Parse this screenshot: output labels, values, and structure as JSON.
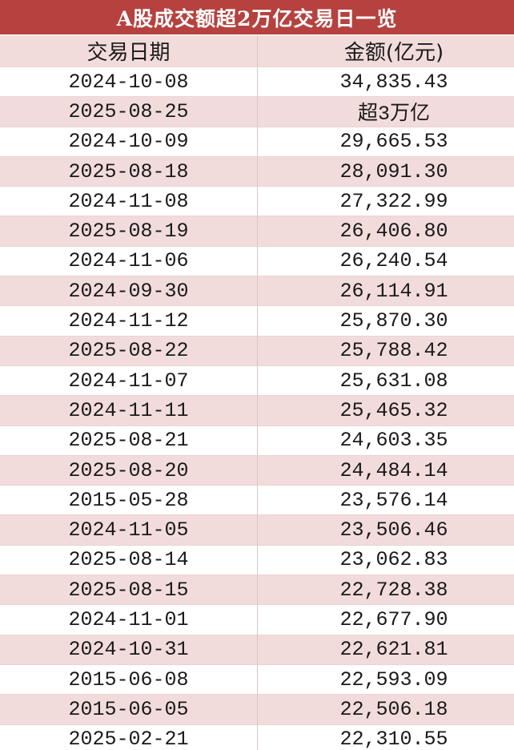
{
  "table": {
    "title": "A股成交额超2万亿交易日一览",
    "columns": [
      "交易日期",
      "金额(亿元)"
    ],
    "rows": [
      [
        "2024-10-08",
        "34,835.43"
      ],
      [
        "2025-08-25",
        "超3万亿"
      ],
      [
        "2024-10-09",
        "29,665.53"
      ],
      [
        "2025-08-18",
        "28,091.30"
      ],
      [
        "2024-11-08",
        "27,322.99"
      ],
      [
        "2025-08-19",
        "26,406.80"
      ],
      [
        "2024-11-06",
        "26,240.54"
      ],
      [
        "2024-09-30",
        "26,114.91"
      ],
      [
        "2024-11-12",
        "25,870.30"
      ],
      [
        "2025-08-22",
        "25,788.42"
      ],
      [
        "2024-11-07",
        "25,631.08"
      ],
      [
        "2024-11-11",
        "25,465.32"
      ],
      [
        "2025-08-21",
        "24,603.35"
      ],
      [
        "2025-08-20",
        "24,484.14"
      ],
      [
        "2015-05-28",
        "23,576.14"
      ],
      [
        "2024-11-05",
        "23,506.46"
      ],
      [
        "2025-08-14",
        "23,062.83"
      ],
      [
        "2025-08-15",
        "22,728.38"
      ],
      [
        "2024-11-01",
        "22,677.90"
      ],
      [
        "2024-10-31",
        "22,621.81"
      ],
      [
        "2015-06-08",
        "22,593.09"
      ],
      [
        "2015-06-05",
        "22,506.18"
      ],
      [
        "2025-02-21",
        "22,310.55"
      ]
    ]
  }
}
